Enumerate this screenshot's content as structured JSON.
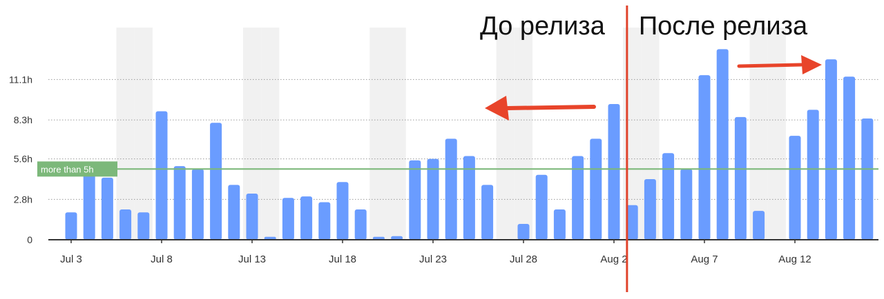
{
  "chart_data": {
    "type": "bar",
    "categories": [
      "Jul 3",
      "Jul 4",
      "Jul 5",
      "Jul 6",
      "Jul 7",
      "Jul 8",
      "Jul 9",
      "Jul 10",
      "Jul 11",
      "Jul 12",
      "Jul 13",
      "Jul 14",
      "Jul 15",
      "Jul 16",
      "Jul 17",
      "Jul 18",
      "Jul 19",
      "Jul 20",
      "Jul 21",
      "Jul 22",
      "Jul 23",
      "Jul 24",
      "Jul 25",
      "Jul 26",
      "Jul 27",
      "Jul 28",
      "Jul 29",
      "Jul 30",
      "Jul 31",
      "Aug 1",
      "Aug 2",
      "Aug 3",
      "Aug 4",
      "Aug 5",
      "Aug 6",
      "Aug 7",
      "Aug 8",
      "Aug 9",
      "Aug 10",
      "Aug 11",
      "Aug 12",
      "Aug 13",
      "Aug 14",
      "Aug 15",
      "Aug 16"
    ],
    "values": [
      1.9,
      4.7,
      4.3,
      2.1,
      1.9,
      8.9,
      5.1,
      4.9,
      8.1,
      3.8,
      3.2,
      0.2,
      2.9,
      3.0,
      2.6,
      4.0,
      2.1,
      0.2,
      0.25,
      5.5,
      5.6,
      7.0,
      5.8,
      3.8,
      0,
      1.1,
      4.5,
      2.1,
      5.8,
      7.0,
      9.4,
      2.4,
      4.2,
      6.0,
      4.9,
      11.4,
      13.2,
      8.5,
      2.0,
      0,
      7.2,
      9.0,
      12.5,
      11.3,
      8.4
    ],
    "shaded_categories": [
      "Jul 6",
      "Jul 7",
      "Jul 13",
      "Jul 14",
      "Jul 20",
      "Jul 21",
      "Jul 27",
      "Jul 28",
      "Aug 3",
      "Aug 4",
      "Aug 10",
      "Aug 11"
    ],
    "xtick_labels": [
      "Jul 3",
      "Jul 8",
      "Jul 13",
      "Jul 18",
      "Jul 23",
      "Jul 28",
      "Aug 2",
      "Aug 7",
      "Aug 12"
    ],
    "yticks": [
      {
        "value": 0,
        "label": "0"
      },
      {
        "value": 2.8,
        "label": "2.8h"
      },
      {
        "value": 5.6,
        "label": "5.6h"
      },
      {
        "value": 8.3,
        "label": "8.3h"
      },
      {
        "value": 11.1,
        "label": "11.1h"
      }
    ],
    "ylim": [
      0,
      14.7
    ],
    "grid": "horizontal dotted",
    "threshold": {
      "value": 4.9,
      "label": "more than 5h",
      "color": "#7cb87a"
    },
    "release_marker": {
      "after_category": "Aug 2",
      "color": "#e0432b"
    },
    "annotations": {
      "before_release": "До релиза",
      "after_release": "После релиза"
    },
    "colors": {
      "bar": "#6a9cff",
      "weekend_band": "#f1f1f1",
      "threshold": "#7cb87a",
      "release_line": "#e0432b",
      "arrow": "#e8442a",
      "axis": "#333333"
    }
  }
}
